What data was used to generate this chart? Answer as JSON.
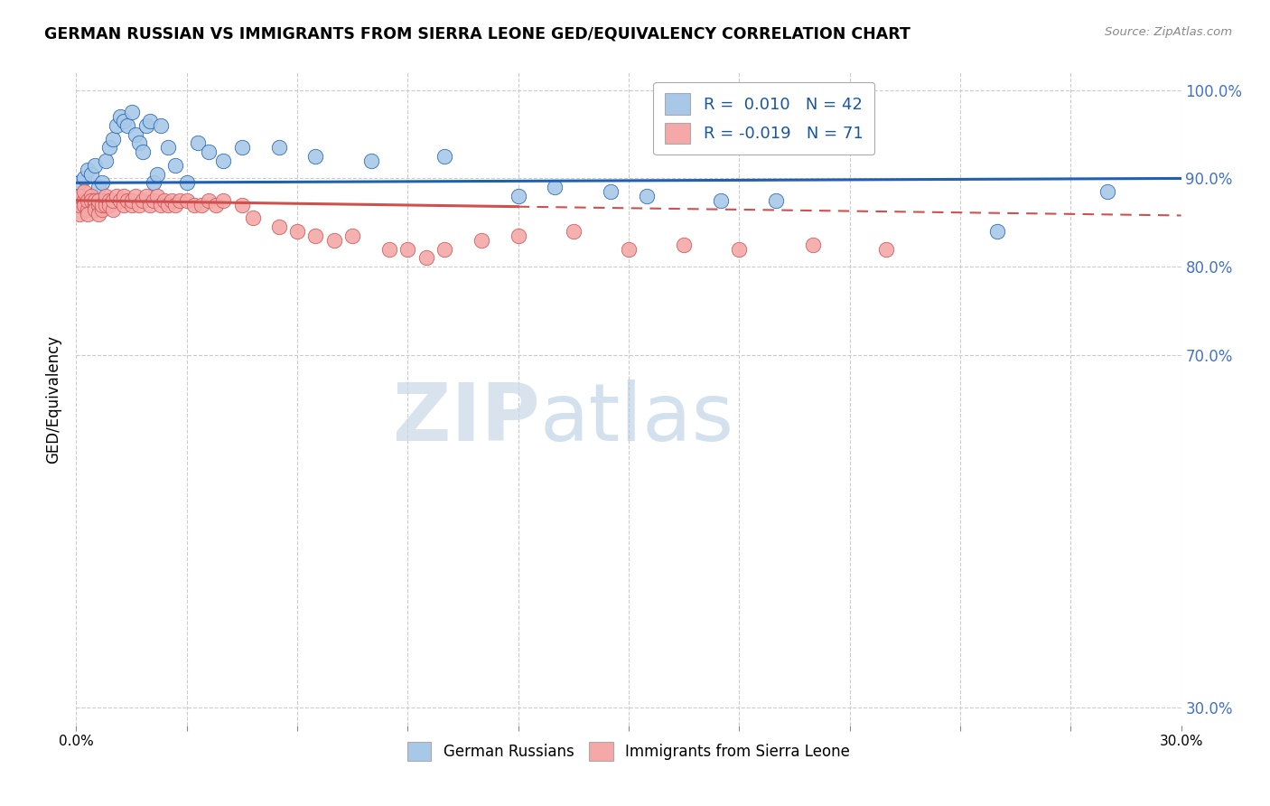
{
  "title": "GERMAN RUSSIAN VS IMMIGRANTS FROM SIERRA LEONE GED/EQUIVALENCY CORRELATION CHART",
  "source": "Source: ZipAtlas.com",
  "ylabel": "GED/Equivalency",
  "ytick_values": [
    1.0,
    0.9,
    0.8,
    0.7,
    0.3
  ],
  "xlim": [
    0.0,
    0.3
  ],
  "ylim": [
    0.28,
    1.02
  ],
  "legend_R_blue": "0.010",
  "legend_N_blue": "42",
  "legend_R_pink": "-0.019",
  "legend_N_pink": "71",
  "blue_color": "#a8c8e8",
  "pink_color": "#f4a8a8",
  "trendline_blue_color": "#2060b0",
  "trendline_pink_color": "#d05050",
  "background_color": "#ffffff",
  "watermark_zip": "ZIP",
  "watermark_atlas": "atlas",
  "blue_scatter_x": [
    0.001,
    0.002,
    0.003,
    0.004,
    0.005,
    0.006,
    0.007,
    0.008,
    0.009,
    0.01,
    0.011,
    0.012,
    0.013,
    0.014,
    0.015,
    0.016,
    0.017,
    0.018,
    0.019,
    0.02,
    0.021,
    0.022,
    0.023,
    0.025,
    0.027,
    0.03,
    0.033,
    0.036,
    0.04,
    0.045,
    0.055,
    0.065,
    0.08,
    0.1,
    0.12,
    0.13,
    0.145,
    0.155,
    0.175,
    0.19,
    0.25,
    0.28
  ],
  "blue_scatter_y": [
    0.895,
    0.9,
    0.91,
    0.905,
    0.915,
    0.89,
    0.895,
    0.92,
    0.935,
    0.945,
    0.96,
    0.97,
    0.965,
    0.96,
    0.975,
    0.95,
    0.94,
    0.93,
    0.96,
    0.965,
    0.895,
    0.905,
    0.96,
    0.935,
    0.915,
    0.895,
    0.94,
    0.93,
    0.92,
    0.935,
    0.935,
    0.925,
    0.92,
    0.925,
    0.88,
    0.89,
    0.885,
    0.88,
    0.875,
    0.875,
    0.84,
    0.885
  ],
  "pink_scatter_x": [
    0.001,
    0.001,
    0.001,
    0.002,
    0.002,
    0.002,
    0.003,
    0.003,
    0.003,
    0.004,
    0.004,
    0.005,
    0.005,
    0.005,
    0.006,
    0.006,
    0.006,
    0.007,
    0.007,
    0.008,
    0.008,
    0.008,
    0.009,
    0.009,
    0.01,
    0.01,
    0.011,
    0.012,
    0.013,
    0.013,
    0.014,
    0.015,
    0.015,
    0.016,
    0.017,
    0.018,
    0.019,
    0.02,
    0.021,
    0.022,
    0.023,
    0.024,
    0.025,
    0.026,
    0.027,
    0.028,
    0.03,
    0.032,
    0.034,
    0.036,
    0.038,
    0.04,
    0.045,
    0.048,
    0.055,
    0.06,
    0.065,
    0.07,
    0.075,
    0.085,
    0.09,
    0.095,
    0.1,
    0.11,
    0.12,
    0.135,
    0.15,
    0.165,
    0.18,
    0.2,
    0.22
  ],
  "pink_scatter_y": [
    0.86,
    0.87,
    0.88,
    0.875,
    0.87,
    0.885,
    0.865,
    0.875,
    0.86,
    0.88,
    0.875,
    0.87,
    0.875,
    0.865,
    0.87,
    0.86,
    0.875,
    0.865,
    0.87,
    0.875,
    0.87,
    0.88,
    0.875,
    0.87,
    0.865,
    0.875,
    0.88,
    0.875,
    0.87,
    0.88,
    0.875,
    0.87,
    0.875,
    0.88,
    0.87,
    0.875,
    0.88,
    0.87,
    0.875,
    0.88,
    0.87,
    0.875,
    0.87,
    0.875,
    0.87,
    0.875,
    0.875,
    0.87,
    0.87,
    0.875,
    0.87,
    0.875,
    0.87,
    0.855,
    0.845,
    0.84,
    0.835,
    0.83,
    0.835,
    0.82,
    0.82,
    0.81,
    0.82,
    0.83,
    0.835,
    0.84,
    0.82,
    0.825,
    0.82,
    0.825,
    0.82
  ],
  "trendline_blue_x0": 0.0,
  "trendline_blue_x1": 0.3,
  "trendline_blue_y0": 0.895,
  "trendline_blue_y1": 0.9,
  "trendline_pink_solid_x0": 0.0,
  "trendline_pink_solid_x1": 0.12,
  "trendline_pink_solid_y0": 0.875,
  "trendline_pink_solid_y1": 0.868,
  "trendline_pink_dash_x0": 0.12,
  "trendline_pink_dash_x1": 0.3,
  "trendline_pink_dash_y0": 0.868,
  "trendline_pink_dash_y1": 0.858
}
